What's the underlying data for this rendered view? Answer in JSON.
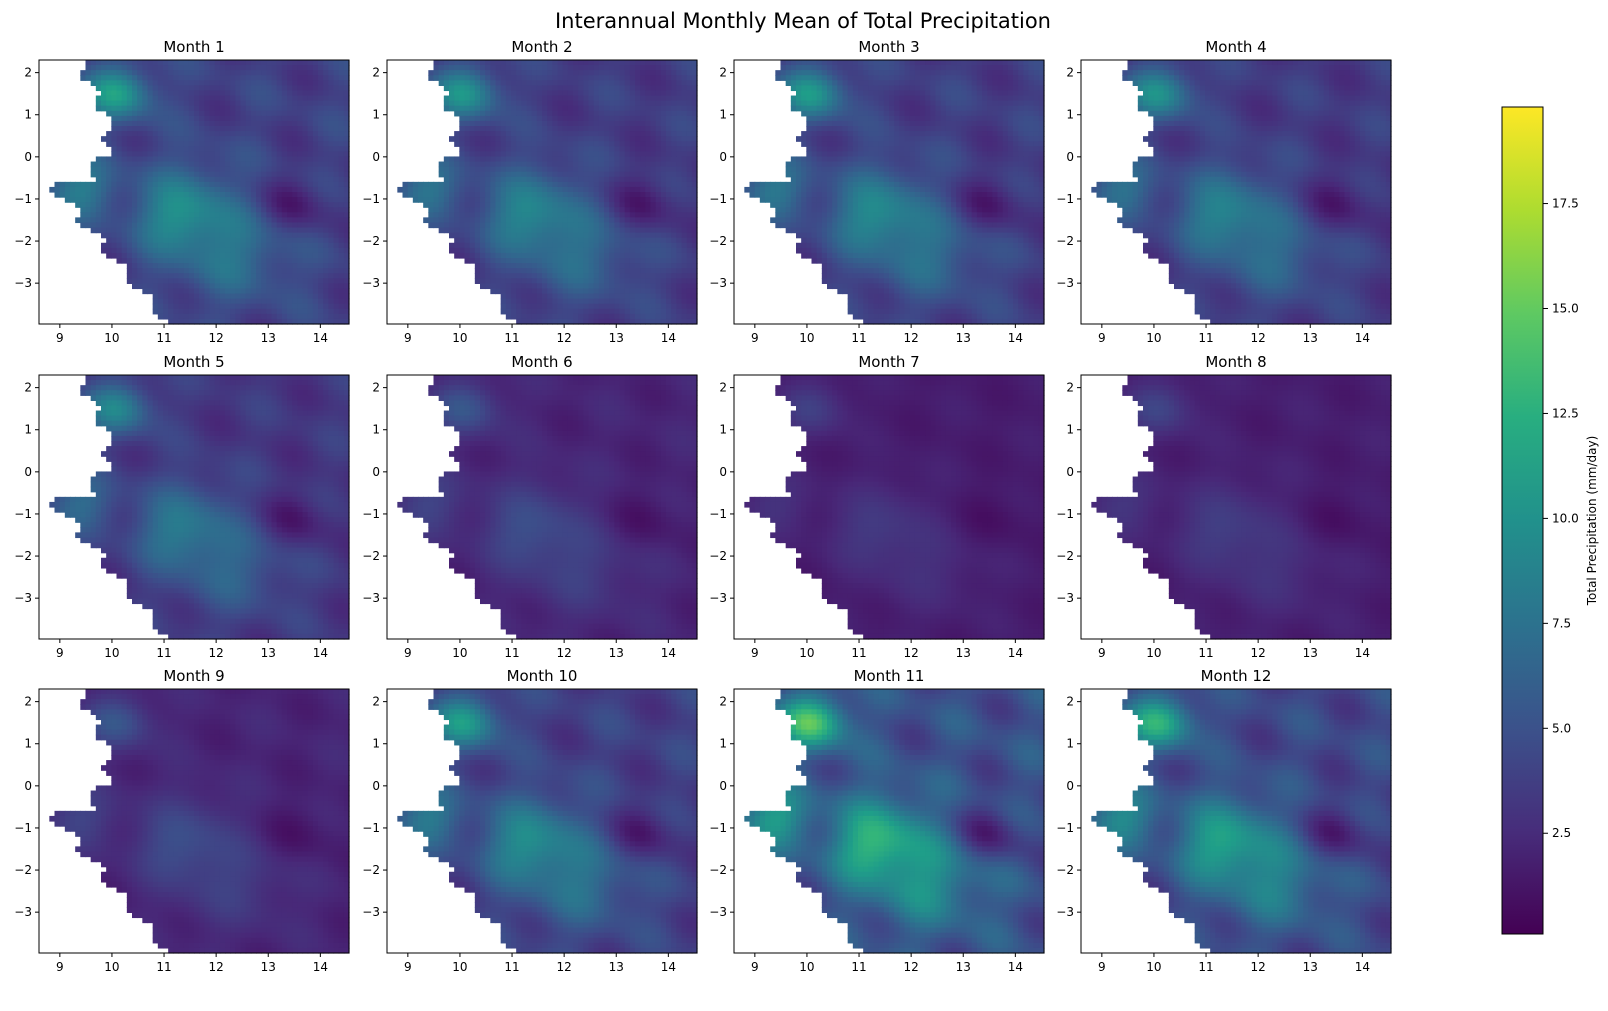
{
  "figure": {
    "title": "Interannual Monthly Mean of Total Precipitation"
  },
  "chart_data": {
    "type": "heatmap",
    "colormap": "viridis",
    "panels": [
      {
        "title": "Month 1",
        "intensity": 0.68
      },
      {
        "title": "Month 2",
        "intensity": 0.62
      },
      {
        "title": "Month 3",
        "intensity": 0.64
      },
      {
        "title": "Month 4",
        "intensity": 0.6
      },
      {
        "title": "Month 5",
        "intensity": 0.55
      },
      {
        "title": "Month 6",
        "intensity": 0.3
      },
      {
        "title": "Month 7",
        "intensity": 0.2
      },
      {
        "title": "Month 8",
        "intensity": 0.22
      },
      {
        "title": "Month 9",
        "intensity": 0.3
      },
      {
        "title": "Month 10",
        "intensity": 0.66
      },
      {
        "title": "Month 11",
        "intensity": 0.9
      },
      {
        "title": "Month 12",
        "intensity": 0.78
      }
    ],
    "x_ticks": [
      "9",
      "10",
      "11",
      "12",
      "13",
      "14"
    ],
    "y_ticks": [
      "2",
      "1",
      "0",
      "−1",
      "−2",
      "−3"
    ],
    "xlim": [
      8.6,
      14.55
    ],
    "ylim": [
      -3.97,
      2.3
    ],
    "colorbar": {
      "label": "Total Precipitation (mm/day)",
      "ticks": [
        "2.5",
        "5.0",
        "7.5",
        "10.0",
        "12.5",
        "15.0",
        "17.5"
      ],
      "tick_values": [
        2.5,
        5.0,
        7.5,
        10.0,
        12.5,
        15.0,
        17.5
      ],
      "range": [
        0.1,
        19.8
      ]
    }
  }
}
